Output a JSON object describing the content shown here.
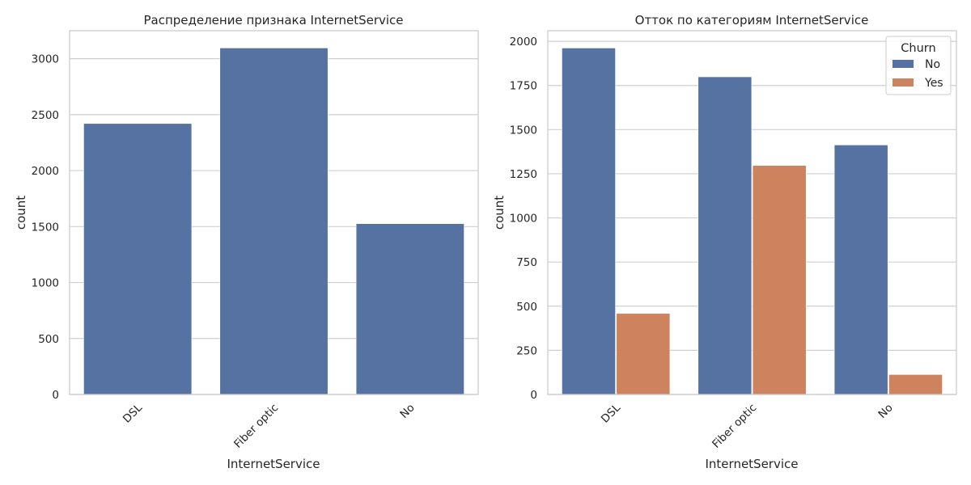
{
  "colors": {
    "no": "#5572a2",
    "yes": "#cd845e",
    "grid": "#cfcfcf",
    "spine": "#cccccc",
    "background": "#ffffff"
  },
  "chart_data": [
    {
      "type": "bar",
      "title": "Распределение признака InternetService",
      "xlabel": "InternetService",
      "ylabel": "count",
      "categories": [
        "DSL",
        "Fiber optic",
        "No"
      ],
      "values": [
        2421,
        3096,
        1526
      ],
      "ylim": [
        0,
        3250
      ],
      "yticks": [
        0,
        500,
        1000,
        1500,
        2000,
        2500,
        3000
      ],
      "grid": true
    },
    {
      "type": "bar",
      "title": "Отток по категориям InternetService",
      "xlabel": "InternetService",
      "ylabel": "count",
      "categories": [
        "DSL",
        "Fiber optic",
        "No"
      ],
      "legend_title": "Churn",
      "legend_position": "top-right",
      "series": [
        {
          "name": "No",
          "values": [
            1962,
            1799,
            1413
          ]
        },
        {
          "name": "Yes",
          "values": [
            459,
            1297,
            113
          ]
        }
      ],
      "ylim": [
        0,
        2060
      ],
      "yticks": [
        0,
        250,
        500,
        750,
        1000,
        1250,
        1500,
        1750,
        2000
      ],
      "grid": true
    }
  ]
}
